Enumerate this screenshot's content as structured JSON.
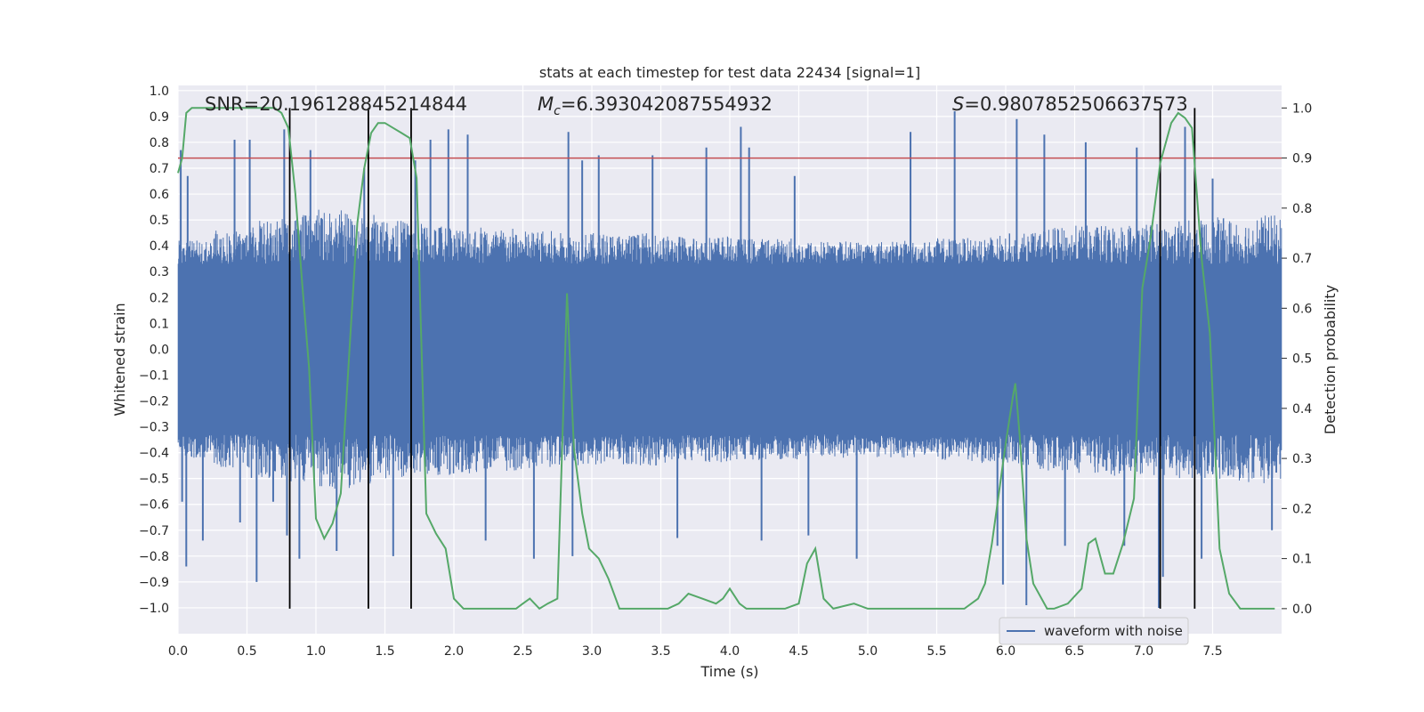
{
  "chart_data": {
    "type": "line",
    "title": "stats at each timestep for test data 22434 [signal=1]",
    "xlabel": "Time (s)",
    "ylabel": "Whitened strain",
    "y2label": "Detection probability",
    "xlim": [
      0.0,
      8.0
    ],
    "ylim": [
      -1.1,
      1.02
    ],
    "y2lim": [
      -0.05,
      1.045
    ],
    "xticks": [
      0.0,
      0.5,
      1.0,
      1.5,
      2.0,
      2.5,
      3.0,
      3.5,
      4.0,
      4.5,
      5.0,
      5.5,
      6.0,
      6.5,
      7.0,
      7.5
    ],
    "xtick_labels": [
      "0.0",
      "0.5",
      "1.0",
      "1.5",
      "2.0",
      "2.5",
      "3.0",
      "3.5",
      "4.0",
      "4.5",
      "5.0",
      "5.5",
      "6.0",
      "6.5",
      "7.0",
      "7.5"
    ],
    "yticks": [
      1.0,
      0.9,
      0.8,
      0.7,
      0.6,
      0.5,
      0.4,
      0.3,
      0.2,
      0.1,
      0.0,
      -0.1,
      -0.2,
      -0.3,
      -0.4,
      -0.5,
      -0.6,
      -0.7,
      -0.8,
      -0.9,
      -1.0
    ],
    "ytick_labels": [
      "1.0",
      "0.9",
      "0.8",
      "0.7",
      "0.6",
      "0.5",
      "0.4",
      "0.3",
      "0.2",
      "0.1",
      "0.0",
      "−0.1",
      "−0.2",
      "−0.3",
      "−0.4",
      "−0.5",
      "−0.6",
      "−0.7",
      "−0.8",
      "−0.9",
      "−1.0"
    ],
    "y2ticks": [
      1.0,
      0.9,
      0.8,
      0.7,
      0.6,
      0.5,
      0.4,
      0.3,
      0.2,
      0.1,
      0.0
    ],
    "y2tick_labels": [
      "1.0",
      "0.9",
      "0.8",
      "0.7",
      "0.6",
      "0.5",
      "0.4",
      "0.3",
      "0.2",
      "0.1",
      "0.0"
    ],
    "grid": true,
    "legend": {
      "placement": "lower-right",
      "entries": [
        "waveform with noise"
      ]
    },
    "annotations": {
      "snr": "SNR=20.196128845214844",
      "mc_symbol": "M",
      "mc_sub": "c",
      "mc_value": "=6.393042087554932",
      "s_symbol": "S",
      "s_value": "=0.9807852506637573"
    },
    "threshold": {
      "value": 0.9,
      "axis": "right",
      "color": "#c44e52"
    },
    "vertical_lines": [
      0.81,
      1.38,
      1.69,
      7.12,
      7.37
    ],
    "waveform": {
      "name": "waveform with noise",
      "color": "#4c72b0",
      "band": 0.33,
      "envelope": [
        0.42,
        0.46,
        0.5,
        0.52,
        0.54,
        0.53,
        0.5,
        0.49,
        0.48,
        0.47,
        0.46,
        0.45,
        0.45,
        0.45,
        0.44,
        0.44,
        0.43,
        0.43,
        0.42,
        0.42,
        0.42,
        0.42,
        0.43,
        0.44,
        0.45,
        0.47,
        0.48,
        0.49,
        0.49,
        0.5,
        0.51,
        0.52
      ],
      "spikes": [
        [
          0.02,
          0.77
        ],
        [
          0.03,
          -0.59
        ],
        [
          0.06,
          -0.84
        ],
        [
          0.07,
          0.67
        ],
        [
          0.18,
          -0.74
        ],
        [
          0.41,
          0.81
        ],
        [
          0.45,
          -0.67
        ],
        [
          0.52,
          0.81
        ],
        [
          0.57,
          -0.9
        ],
        [
          0.69,
          -0.59
        ],
        [
          0.77,
          0.85
        ],
        [
          0.79,
          -0.72
        ],
        [
          0.88,
          -0.81
        ],
        [
          0.96,
          0.77
        ],
        [
          1.15,
          -0.78
        ],
        [
          1.35,
          0.7
        ],
        [
          1.56,
          -0.8
        ],
        [
          1.72,
          0.73
        ],
        [
          1.83,
          0.81
        ],
        [
          1.96,
          0.85
        ],
        [
          2.1,
          0.83
        ],
        [
          2.23,
          -0.74
        ],
        [
          2.58,
          -0.81
        ],
        [
          2.83,
          0.84
        ],
        [
          2.86,
          -0.8
        ],
        [
          2.93,
          0.73
        ],
        [
          3.05,
          0.75
        ],
        [
          3.44,
          0.75
        ],
        [
          3.62,
          -0.73
        ],
        [
          3.83,
          0.78
        ],
        [
          4.08,
          0.86
        ],
        [
          4.14,
          0.78
        ],
        [
          4.23,
          -0.74
        ],
        [
          4.47,
          0.67
        ],
        [
          4.57,
          -0.72
        ],
        [
          4.92,
          -0.81
        ],
        [
          5.31,
          0.84
        ],
        [
          5.63,
          0.92
        ],
        [
          5.94,
          -0.76
        ],
        [
          5.98,
          -0.91
        ],
        [
          6.08,
          0.89
        ],
        [
          6.15,
          -0.99
        ],
        [
          6.28,
          0.83
        ],
        [
          6.43,
          -0.76
        ],
        [
          6.58,
          0.8
        ],
        [
          6.86,
          -0.76
        ],
        [
          6.95,
          0.78
        ],
        [
          7.11,
          -1.0
        ],
        [
          7.14,
          -0.88
        ],
        [
          7.3,
          0.86
        ],
        [
          7.42,
          -0.81
        ],
        [
          7.5,
          0.66
        ],
        [
          7.93,
          -0.7
        ]
      ]
    },
    "series": [
      {
        "name": "",
        "axis": "right",
        "color": "#55a868",
        "x": [
          0.0,
          0.03,
          0.06,
          0.1,
          0.15,
          0.2,
          0.3,
          0.4,
          0.5,
          0.6,
          0.7,
          0.75,
          0.8,
          0.85,
          0.9,
          0.95,
          1.0,
          1.06,
          1.12,
          1.18,
          1.25,
          1.3,
          1.35,
          1.4,
          1.45,
          1.5,
          1.56,
          1.62,
          1.68,
          1.73,
          1.8,
          1.87,
          1.94,
          2.0,
          2.07,
          2.15,
          2.25,
          2.35,
          2.45,
          2.5,
          2.55,
          2.62,
          2.68,
          2.75,
          2.82,
          2.87,
          2.93,
          2.98,
          3.05,
          3.12,
          3.2,
          3.3,
          3.45,
          3.55,
          3.63,
          3.7,
          3.8,
          3.9,
          3.95,
          4.0,
          4.07,
          4.12,
          4.25,
          4.4,
          4.5,
          4.56,
          4.62,
          4.68,
          4.75,
          4.9,
          5.0,
          5.2,
          5.5,
          5.7,
          5.8,
          5.85,
          5.9,
          5.95,
          6.0,
          6.05,
          6.07,
          6.1,
          6.15,
          6.2,
          6.3,
          6.35,
          6.45,
          6.55,
          6.6,
          6.65,
          6.72,
          6.78,
          6.85,
          6.93,
          6.99,
          7.05,
          7.12,
          7.2,
          7.25,
          7.3,
          7.35,
          7.42,
          7.48,
          7.55,
          7.62,
          7.7,
          7.8,
          7.95
        ],
        "y": [
          0.87,
          0.9,
          0.99,
          1.0,
          1.0,
          1.0,
          1.0,
          1.0,
          1.0,
          1.0,
          1.0,
          0.99,
          0.96,
          0.83,
          0.65,
          0.48,
          0.18,
          0.14,
          0.17,
          0.23,
          0.55,
          0.77,
          0.88,
          0.95,
          0.97,
          0.97,
          0.96,
          0.95,
          0.94,
          0.86,
          0.19,
          0.15,
          0.12,
          0.02,
          0.0,
          0.0,
          0.0,
          0.0,
          0.0,
          0.01,
          0.02,
          0.0,
          0.01,
          0.02,
          0.63,
          0.32,
          0.19,
          0.12,
          0.1,
          0.06,
          0.0,
          0.0,
          0.0,
          0.0,
          0.01,
          0.03,
          0.02,
          0.01,
          0.02,
          0.04,
          0.01,
          0.0,
          0.0,
          0.0,
          0.01,
          0.09,
          0.12,
          0.02,
          0.0,
          0.01,
          0.0,
          0.0,
          0.0,
          0.0,
          0.02,
          0.05,
          0.13,
          0.23,
          0.33,
          0.42,
          0.45,
          0.35,
          0.14,
          0.05,
          0.0,
          0.0,
          0.01,
          0.04,
          0.13,
          0.14,
          0.07,
          0.07,
          0.13,
          0.22,
          0.64,
          0.74,
          0.89,
          0.97,
          0.99,
          0.98,
          0.96,
          0.7,
          0.55,
          0.12,
          0.03,
          0.0,
          0.0,
          0.0
        ]
      }
    ]
  }
}
